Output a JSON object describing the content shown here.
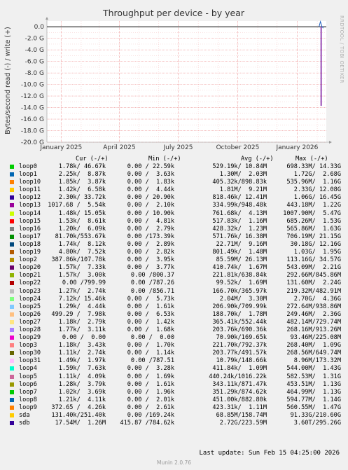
{
  "chart_data": {
    "type": "line",
    "title": "Throughput per device - by year",
    "ylabel": "Bytes/second read (-) / write (+)",
    "xlabel": "",
    "y_ticks": [
      "0.0",
      "-2.0 G",
      "-4.0 G",
      "-6.0 G",
      "-8.0 G",
      "-10.0 G",
      "-12.0 G",
      "-14.0 G",
      "-16.0 G",
      "-18.0 G",
      "-20.0 G"
    ],
    "y_tick_values": [
      0,
      -2,
      -4,
      -6,
      -8,
      -10,
      -12,
      -14,
      -16,
      -18,
      -20
    ],
    "ylim": [
      -20,
      1
    ],
    "x_ticks": [
      "January 2025",
      "April 2025",
      "July 2025",
      "October 2025",
      "January 2026"
    ],
    "x_tick_values": [
      "2025-01-01",
      "2025-04-01",
      "2025-07-01",
      "2025-10-01",
      "2026-01-01"
    ],
    "x_range": [
      "2024-12-10",
      "2026-02-15"
    ],
    "grid": true,
    "spike": {
      "date": "2026-02-07",
      "max_write_G": 0.9,
      "min_read_G": -13.7
    },
    "colors": {
      "background": "#f0f0f0",
      "plot_bg": "#ffffff",
      "grid": "#f0a0a0",
      "zero_line": "#000000",
      "spike_read": "#7a1aa0",
      "spike_write": "#2060c0"
    }
  },
  "legend": {
    "headers": {
      "cur": "Cur (-/+)",
      "min": "Min (-/+)",
      "avg": "Avg (-/+)",
      "max": "Max (-/+)"
    },
    "rows": [
      {
        "name": "loop0",
        "color": "#00cc00",
        "cur": "1.78k/ 46.67k",
        "min": "0.00 / 22.59k",
        "avg": "529.19k/ 10.84M",
        "max": "698.33M/ 14.33G"
      },
      {
        "name": "loop1",
        "color": "#0066b3",
        "cur": "2.25k/  8.87k",
        "min": "0.00 /  3.63k",
        "avg": "1.30M/  2.03M",
        "max": "1.72G/  2.68G"
      },
      {
        "name": "loop10",
        "color": "#ff8000",
        "cur": "1.85k/  3.87k",
        "min": "0.00 /  1.83k",
        "avg": "405.32k/898.83k",
        "max": "535.96M/  1.16G"
      },
      {
        "name": "loop11",
        "color": "#ffcc00",
        "cur": "1.42k/  6.58k",
        "min": "0.00 /  4.44k",
        "avg": "1.81M/  9.21M",
        "max": "2.33G/ 12.08G"
      },
      {
        "name": "loop12",
        "color": "#330099",
        "cur": "2.30k/ 33.72k",
        "min": "0.00 / 20.90k",
        "avg": "818.46k/ 12.41M",
        "max": "1.06G/ 16.45G"
      },
      {
        "name": "loop13",
        "color": "#990099",
        "cur": "1017.68 /  5.54k",
        "min": "0.00 /  2.10k",
        "avg": "334.99k/948.48k",
        "max": "443.18M/  1.22G"
      },
      {
        "name": "loop14",
        "color": "#ccff00",
        "cur": "1.48k/ 15.05k",
        "min": "0.00 / 10.90k",
        "avg": "761.68k/  4.13M",
        "max": "1007.90M/  5.47G"
      },
      {
        "name": "loop15",
        "color": "#ff0000",
        "cur": "1.53k/  8.61k",
        "min": "0.00 /  4.81k",
        "avg": "517.83k/  1.16M",
        "max": "685.26M/  1.53G"
      },
      {
        "name": "loop16",
        "color": "#808080",
        "cur": "1.20k/  6.09k",
        "min": "0.00 /  2.79k",
        "avg": "428.32k/  1.23M",
        "max": "565.86M/  1.63G"
      },
      {
        "name": "loop17",
        "color": "#008f00",
        "cur": "81.70k/553.67k",
        "min": "0.00 /173.39k",
        "avg": "571.76k/ 16.38M",
        "max": "706.19M/ 21.15G"
      },
      {
        "name": "loop18",
        "color": "#00487d",
        "cur": "1.74k/  8.12k",
        "min": "0.00 /  2.89k",
        "avg": "22.71M/  9.16M",
        "max": "30.18G/ 12.16G"
      },
      {
        "name": "loop19",
        "color": "#b35a00",
        "cur": "4.80k/  7.52k",
        "min": "0.00 /  2.82k",
        "avg": "801.49k/  1.48M",
        "max": "1.03G/  1.95G"
      },
      {
        "name": "loop2",
        "color": "#b38f00",
        "cur": "387.86k/107.78k",
        "min": "0.00 /  3.95k",
        "avg": "85.59M/ 26.13M",
        "max": "113.16G/ 34.57G"
      },
      {
        "name": "loop20",
        "color": "#6b006b",
        "cur": "1.57k/  7.33k",
        "min": "0.00 /  3.77k",
        "avg": "410.74k/  1.67M",
        "max": "543.09M/  2.21G"
      },
      {
        "name": "loop21",
        "color": "#8fb300",
        "cur": "1.57k/  3.00k",
        "min": "0.00 /800.37",
        "avg": "221.81k/638.84k",
        "max": "292.66M/845.86M"
      },
      {
        "name": "loop22",
        "color": "#b30000",
        "cur": "0.00 /799.99",
        "min": "0.00 /787.26",
        "avg": "99.52k/  1.69M",
        "max": "131.60M/  2.24G"
      },
      {
        "name": "loop23",
        "color": "#bebebe",
        "cur": "1.27k/  2.74k",
        "min": "0.00 /856.71",
        "avg": "166.70k/365.97k",
        "max": "219.32M/482.91M"
      },
      {
        "name": "loop24",
        "color": "#80ff80",
        "cur": "7.12k/ 15.46k",
        "min": "0.00 /  5.73k",
        "avg": "2.04M/  3.30M",
        "max": "2.70G/  4.36G"
      },
      {
        "name": "loop25",
        "color": "#80c9ff",
        "cur": "1.29k/  4.44k",
        "min": "0.00 /  1.61k",
        "avg": "206.90k/709.99k",
        "max": "272.64M/938.86M"
      },
      {
        "name": "loop26",
        "color": "#ffc080",
        "cur": "499.29 /  7.98k",
        "min": "0.00 /  6.53k",
        "avg": "188.70k/  1.78M",
        "max": "249.46M/  2.36G"
      },
      {
        "name": "loop27",
        "color": "#ffe680",
        "cur": "1.18k/  2.79k",
        "min": "0.00 /  1.42k",
        "avg": "365.41k/552.44k",
        "max": "482.14M/729.74M"
      },
      {
        "name": "loop28",
        "color": "#aa80ff",
        "cur": "1.77k/  3.11k",
        "min": "0.00 /  1.68k",
        "avg": "203.76k/690.36k",
        "max": "268.16M/913.26M"
      },
      {
        "name": "loop29",
        "color": "#ee00cc",
        "cur": "0.00 /  0.00",
        "min": "0.00 /  0.00",
        "avg": "70.90k/169.65k",
        "max": "93.46M/225.08M"
      },
      {
        "name": "loop3",
        "color": "#ff8080",
        "cur": "1.18k/  3.43k",
        "min": "0.00 /  1.70k",
        "avg": "221.70k/792.37k",
        "max": "268.40M/  1.09G"
      },
      {
        "name": "loop30",
        "color": "#666600",
        "cur": "1.11k/  2.74k",
        "min": "0.00 /  1.14k",
        "avg": "203.77k/491.57k",
        "max": "268.56M/649.74M"
      },
      {
        "name": "loop31",
        "color": "#ffbfff",
        "cur": "1.49k/  1.97k",
        "min": "0.00 /787.51",
        "avg": "10.79k/148.66k",
        "max": "8.96M/173.32M"
      },
      {
        "name": "loop4",
        "color": "#00ffcc",
        "cur": "1.59k/  7.63k",
        "min": "0.00 /  3.28k",
        "avg": "411.84k/  1.09M",
        "max": "544.00M/  1.43G"
      },
      {
        "name": "loop5",
        "color": "#cc6699",
        "cur": "1.11k/  4.09k",
        "min": "0.00 /  1.69k",
        "avg": "440.24k/1016.22k",
        "max": "582.53M/  1.31G"
      },
      {
        "name": "loop6",
        "color": "#999900",
        "cur": "1.28k/  3.79k",
        "min": "0.00 /  1.61k",
        "avg": "343.11k/871.47k",
        "max": "453.51M/  1.13G"
      },
      {
        "name": "loop7",
        "color": "#00cc00",
        "cur": "1.02k/  3.69k",
        "min": "0.00 /  1.96k",
        "avg": "351.29k/874.62k",
        "max": "464.99M/  1.13G"
      },
      {
        "name": "loop8",
        "color": "#0066b3",
        "cur": "1.21k/  4.11k",
        "min": "0.00 /  2.01k",
        "avg": "451.00k/882.80k",
        "max": "594.77M/  1.14G"
      },
      {
        "name": "loop9",
        "color": "#ff8000",
        "cur": "372.65 /  4.26k",
        "min": "0.00 /  2.61k",
        "avg": "423.31k/  1.11M",
        "max": "560.55M/  1.47G"
      },
      {
        "name": "sda",
        "color": "#ffcc00",
        "cur": "131.40k/251.40k",
        "min": "0.00 /169.24k",
        "avg": "68.85M/158.74M",
        "max": "91.33G/210.60G"
      },
      {
        "name": "sdb",
        "color": "#330099",
        "cur": "17.54M/  1.26M",
        "min": "415.87 /784.62k",
        "avg": "2.72G/223.59M",
        "max": "3.60T/295.26G"
      }
    ]
  },
  "footer": {
    "last_update": "Last update: Sun Feb 15 04:25:00 2026",
    "munin_version": "Munin 2.0.76"
  },
  "side_label": "RRDTOOL / TOBI OETIKER"
}
